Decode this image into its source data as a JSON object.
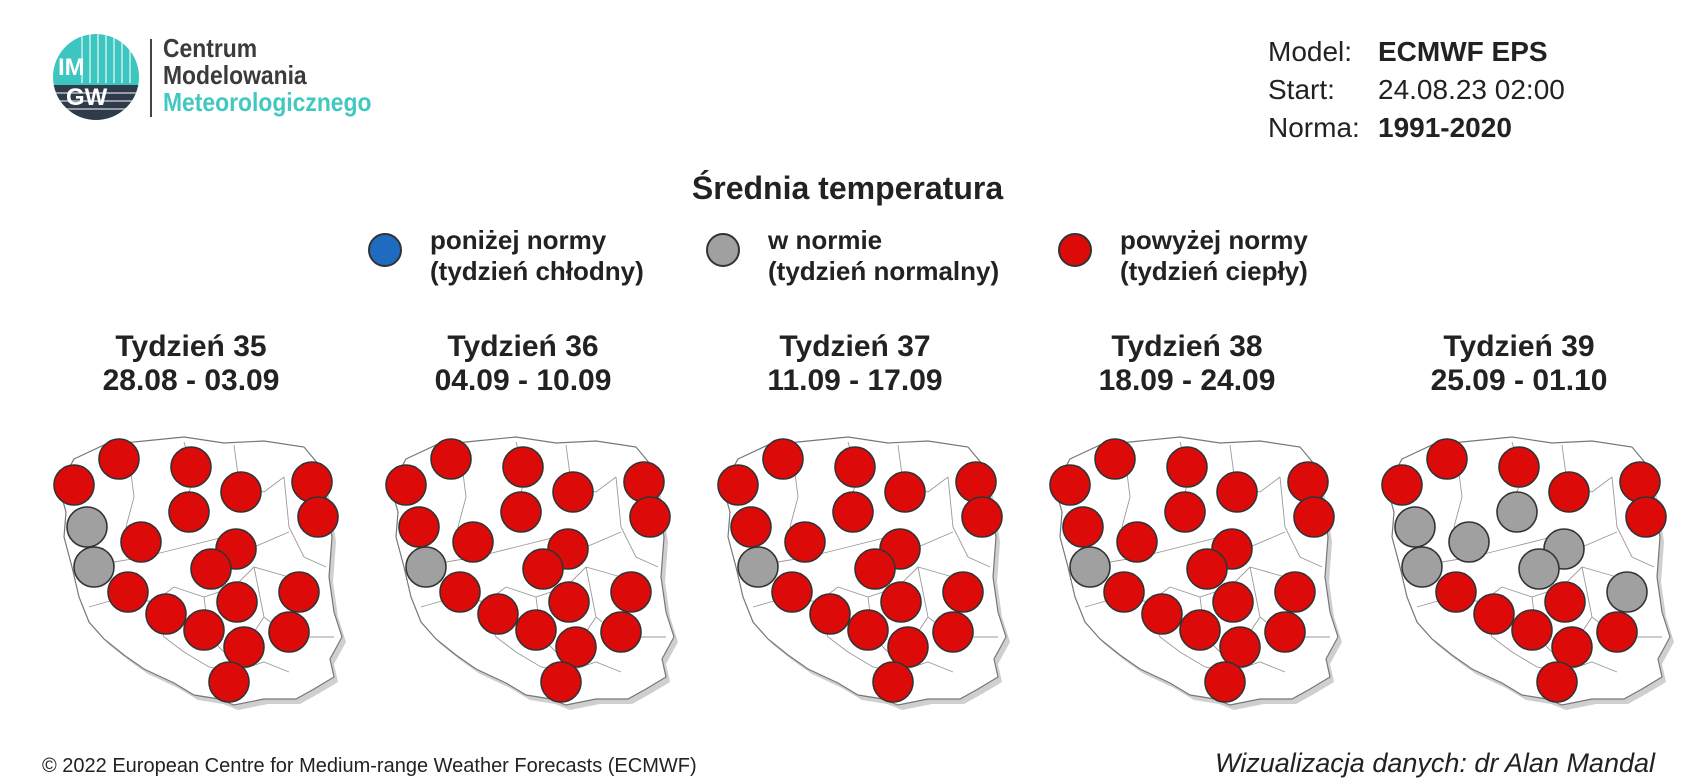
{
  "logo": {
    "mark": "IMGW",
    "line1": "Centrum",
    "line2": "Modelowania",
    "line3": "Meteorologicznego"
  },
  "meta": [
    {
      "key": "Model:",
      "value": "ECMWF EPS",
      "bold": true
    },
    {
      "key": "Start:",
      "value": "24.08.23 02:00",
      "bold": false
    },
    {
      "key": "Norma:",
      "value": "1991-2020",
      "bold": true
    }
  ],
  "title": "Średnia temperatura",
  "legend": [
    {
      "line1": "poniżej normy",
      "line2": "(tydzień chłodny)",
      "color": "#1f6bbf"
    },
    {
      "line1": "w normie",
      "line2": "(tydzień normalny)",
      "color": "#a0a0a0"
    },
    {
      "line1": "powyżej normy",
      "line2": "(tydzień ciepły)",
      "color": "#dd0a0a"
    }
  ],
  "colors": {
    "above": "#dd0a0a",
    "normal": "#a0a0a0",
    "below": "#1f6bbf"
  },
  "weeks": [
    {
      "label": "Tydzień 35",
      "dates": "28.08 - 03.09",
      "regions": {
        "zachodniopomorskie": "above",
        "pomorskie": "above",
        "warminsko-mazurskie": "above",
        "podlaskie": "above",
        "lubuskie-north": "normal",
        "lubuskie-south": "normal",
        "wielkopolskie": "above",
        "kujawsko-pomorskie": "above",
        "mazowieckie-north": "above",
        "mazowieckie": "above",
        "lodzkie": "above",
        "dolnoslaskie": "above",
        "opolskie": "above",
        "slaskie": "above",
        "swietokrzyskie": "above",
        "lubelskie": "above",
        "podkarpackie": "above",
        "malopolskie": "above",
        "wielkopolskie-south": "above",
        "lodzkie-south": "above"
      }
    },
    {
      "label": "Tydzień 36",
      "dates": "04.09 - 10.09",
      "regions": {
        "zachodniopomorskie": "above",
        "pomorskie": "above",
        "warminsko-mazurskie": "above",
        "podlaskie": "above",
        "lubuskie-north": "above",
        "lubuskie-south": "normal",
        "wielkopolskie": "above",
        "kujawsko-pomorskie": "above",
        "mazowieckie-north": "above",
        "mazowieckie": "above",
        "lodzkie": "above",
        "dolnoslaskie": "above",
        "opolskie": "above",
        "slaskie": "above",
        "swietokrzyskie": "above",
        "lubelskie": "above",
        "podkarpackie": "above",
        "malopolskie": "above",
        "wielkopolskie-south": "above",
        "lodzkie-south": "above"
      }
    },
    {
      "label": "Tydzień 37",
      "dates": "11.09 - 17.09",
      "regions": {
        "zachodniopomorskie": "above",
        "pomorskie": "above",
        "warminsko-mazurskie": "above",
        "podlaskie": "above",
        "lubuskie-north": "above",
        "lubuskie-south": "normal",
        "wielkopolskie": "above",
        "kujawsko-pomorskie": "above",
        "mazowieckie-north": "above",
        "mazowieckie": "above",
        "lodzkie": "above",
        "dolnoslaskie": "above",
        "opolskie": "above",
        "slaskie": "above",
        "swietokrzyskie": "above",
        "lubelskie": "above",
        "podkarpackie": "above",
        "malopolskie": "above",
        "wielkopolskie-south": "above",
        "lodzkie-south": "above"
      }
    },
    {
      "label": "Tydzień 38",
      "dates": "18.09 - 24.09",
      "regions": {
        "zachodniopomorskie": "above",
        "pomorskie": "above",
        "warminsko-mazurskie": "above",
        "podlaskie": "above",
        "lubuskie-north": "above",
        "lubuskie-south": "normal",
        "wielkopolskie": "above",
        "kujawsko-pomorskie": "above",
        "mazowieckie-north": "above",
        "mazowieckie": "above",
        "lodzkie": "above",
        "dolnoslaskie": "above",
        "opolskie": "above",
        "slaskie": "above",
        "swietokrzyskie": "above",
        "lubelskie": "above",
        "podkarpackie": "above",
        "malopolskie": "above",
        "wielkopolskie-south": "above",
        "lodzkie-south": "above"
      }
    },
    {
      "label": "Tydzień 39",
      "dates": "25.09 - 01.10",
      "regions": {
        "zachodniopomorskie": "above",
        "pomorskie": "above",
        "warminsko-mazurskie": "above",
        "podlaskie": "above",
        "lubuskie-north": "normal",
        "lubuskie-south": "normal",
        "wielkopolskie": "normal",
        "kujawsko-pomorskie": "above",
        "mazowieckie-north": "normal",
        "mazowieckie": "normal",
        "lodzkie": "normal",
        "dolnoslaskie": "above",
        "opolskie": "above",
        "slaskie": "above",
        "swietokrzyskie": "above",
        "lubelskie": "normal",
        "podkarpackie": "above",
        "malopolskie": "above",
        "wielkopolskie-south": "above",
        "lodzkie-south": "above"
      }
    }
  ],
  "footer": {
    "copyright": "© 2022 European Centre for Medium-range Weather Forecasts (ECMWF)",
    "credit": "Wizualizacja danych: dr Alan Mandal"
  }
}
